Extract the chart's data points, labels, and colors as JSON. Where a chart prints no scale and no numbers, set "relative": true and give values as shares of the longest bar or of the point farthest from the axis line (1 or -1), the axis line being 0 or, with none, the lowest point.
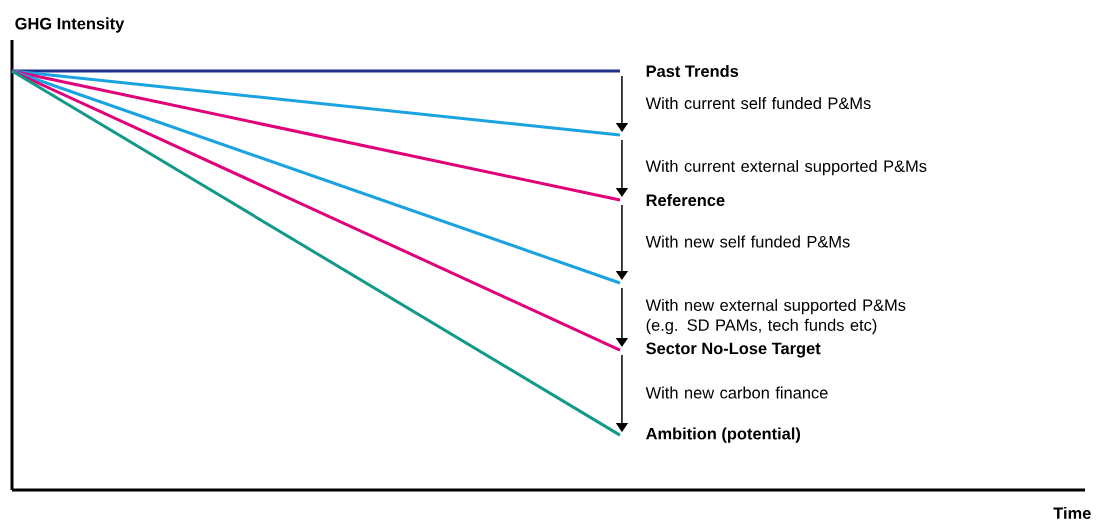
{
  "chart_data": {
    "type": "line",
    "relative": true,
    "xlabel": "Time",
    "ylabel": "GHG Intensity",
    "categories": [
      null,
      null
    ],
    "series": [
      {
        "name": "Past Trends",
        "color": "#1f2f8a",
        "values": [
          1,
          1
        ]
      },
      {
        "color": "#1aa3e0",
        "values": [
          1,
          0.847
        ]
      },
      {
        "name": "Reference",
        "color": "#e0007a",
        "values": [
          1,
          0.692
        ]
      },
      {
        "color": "#1aa3e0",
        "values": [
          1,
          0.494
        ]
      },
      {
        "name": "Sector No-Lose Target",
        "color": "#e0007a",
        "values": [
          1,
          0.334
        ]
      },
      {
        "name": "Ambition (potential)",
        "color": "#12998a",
        "values": [
          1,
          0.131
        ]
      }
    ],
    "annotations": [
      "With current self funded P&Ms",
      "With current external supported P&Ms",
      "With new self funded P&Ms",
      "With new external supported P&Ms (e.g. SD PAMs, tech funds etc)",
      "With new carbon finance"
    ],
    "legend": false
  }
}
